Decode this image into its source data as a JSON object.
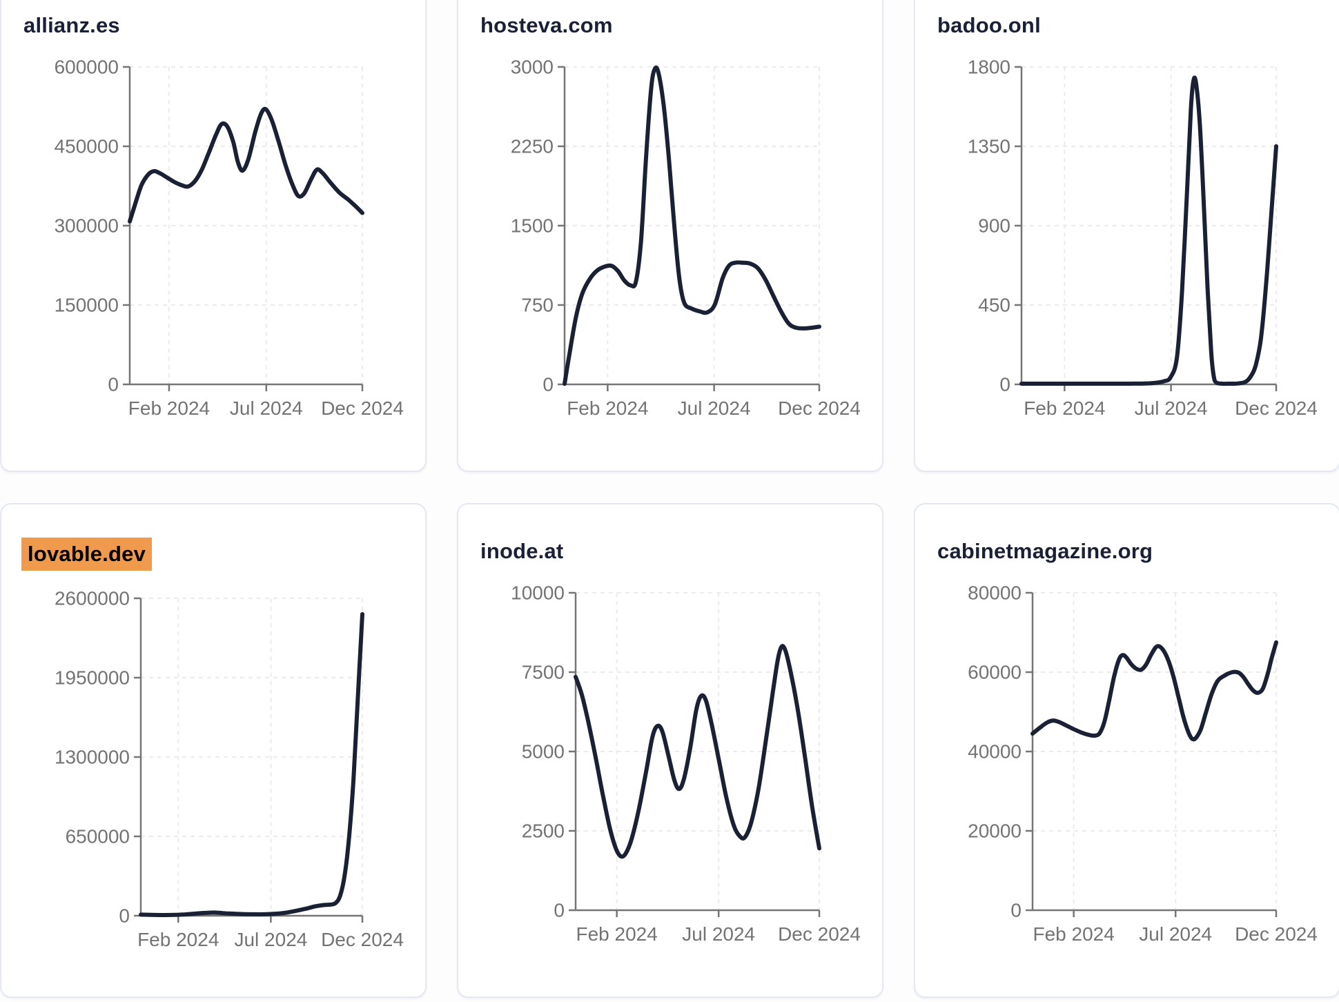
{
  "page": {
    "background": "#fdfdfe",
    "card": {
      "background": "#ffffff",
      "border_color": "#e4e8f1",
      "title_color": "#1a2136",
      "highlight_color": "#f09a4d",
      "highlight_text_color": "#000000",
      "line_color": "#1b2134",
      "axis_color": "#757575",
      "tick_label_color": "#737373",
      "grid_color": "#ebebeb"
    }
  },
  "chart_data": [
    {
      "type": "line",
      "title": "allianz.es",
      "title_highlighted": false,
      "ylim": [
        0,
        600000
      ],
      "y_ticks": [
        0,
        150000,
        300000,
        450000,
        600000
      ],
      "x_tick_labels": [
        "Feb 2024",
        "Jul 2024",
        "Dec 2024"
      ],
      "x_tick_pos": [
        0.169,
        0.587,
        1.0
      ],
      "grid": "dashed",
      "legend": "none",
      "points": [
        [
          0,
          308000
        ],
        [
          0.02,
          336000
        ],
        [
          0.05,
          376000
        ],
        [
          0.08,
          397000
        ],
        [
          0.105,
          403000
        ],
        [
          0.13,
          399000
        ],
        [
          0.16,
          391000
        ],
        [
          0.19,
          383000
        ],
        [
          0.22,
          377000
        ],
        [
          0.25,
          374000
        ],
        [
          0.28,
          384000
        ],
        [
          0.31,
          406000
        ],
        [
          0.34,
          438000
        ],
        [
          0.37,
          471000
        ],
        [
          0.395,
          492000
        ],
        [
          0.42,
          487000
        ],
        [
          0.445,
          458000
        ],
        [
          0.465,
          420000
        ],
        [
          0.485,
          404000
        ],
        [
          0.51,
          426000
        ],
        [
          0.54,
          478000
        ],
        [
          0.565,
          512000
        ],
        [
          0.585,
          520000
        ],
        [
          0.61,
          500000
        ],
        [
          0.64,
          459000
        ],
        [
          0.67,
          414000
        ],
        [
          0.7,
          377000
        ],
        [
          0.725,
          356000
        ],
        [
          0.75,
          361000
        ],
        [
          0.78,
          388000
        ],
        [
          0.805,
          406000
        ],
        [
          0.83,
          399000
        ],
        [
          0.86,
          383000
        ],
        [
          0.9,
          363000
        ],
        [
          0.94,
          349000
        ],
        [
          0.97,
          337000
        ],
        [
          1,
          324000
        ]
      ]
    },
    {
      "type": "line",
      "title": "hosteva.com",
      "title_highlighted": false,
      "ylim": [
        0,
        3000
      ],
      "y_ticks": [
        0,
        750,
        1500,
        2250,
        3000
      ],
      "x_tick_labels": [
        "Feb 2024",
        "Jul 2024",
        "Dec 2024"
      ],
      "x_tick_pos": [
        0.169,
        0.587,
        1.0
      ],
      "grid": "dashed",
      "legend": "none",
      "points": [
        [
          0,
          5
        ],
        [
          0.02,
          300
        ],
        [
          0.045,
          640
        ],
        [
          0.07,
          860
        ],
        [
          0.1,
          1000
        ],
        [
          0.13,
          1080
        ],
        [
          0.16,
          1115
        ],
        [
          0.185,
          1120
        ],
        [
          0.21,
          1070
        ],
        [
          0.235,
          980
        ],
        [
          0.26,
          935
        ],
        [
          0.28,
          970
        ],
        [
          0.3,
          1350
        ],
        [
          0.32,
          2150
        ],
        [
          0.34,
          2800
        ],
        [
          0.355,
          2985
        ],
        [
          0.37,
          2930
        ],
        [
          0.39,
          2620
        ],
        [
          0.41,
          2120
        ],
        [
          0.43,
          1520
        ],
        [
          0.45,
          1010
        ],
        [
          0.47,
          770
        ],
        [
          0.5,
          715
        ],
        [
          0.53,
          690
        ],
        [
          0.56,
          680
        ],
        [
          0.59,
          755
        ],
        [
          0.62,
          1000
        ],
        [
          0.645,
          1120
        ],
        [
          0.67,
          1150
        ],
        [
          0.7,
          1150
        ],
        [
          0.73,
          1140
        ],
        [
          0.76,
          1095
        ],
        [
          0.79,
          985
        ],
        [
          0.82,
          835
        ],
        [
          0.85,
          690
        ],
        [
          0.88,
          575
        ],
        [
          0.91,
          535
        ],
        [
          0.95,
          530
        ],
        [
          1,
          545
        ]
      ]
    },
    {
      "type": "line",
      "title": "badoo.onl",
      "title_highlighted": false,
      "ylim": [
        0,
        1800
      ],
      "y_ticks": [
        0,
        450,
        900,
        1350,
        1800
      ],
      "x_tick_labels": [
        "Feb 2024",
        "Jul 2024",
        "Dec 2024"
      ],
      "x_tick_pos": [
        0.169,
        0.587,
        1.0
      ],
      "grid": "dashed",
      "legend": "none",
      "points": [
        [
          0,
          4
        ],
        [
          0.06,
          4
        ],
        [
          0.12,
          4
        ],
        [
          0.18,
          4
        ],
        [
          0.24,
          4
        ],
        [
          0.3,
          4
        ],
        [
          0.36,
          4
        ],
        [
          0.42,
          4
        ],
        [
          0.48,
          5
        ],
        [
          0.52,
          8
        ],
        [
          0.56,
          18
        ],
        [
          0.585,
          40
        ],
        [
          0.61,
          150
        ],
        [
          0.63,
          520
        ],
        [
          0.65,
          1100
        ],
        [
          0.665,
          1560
        ],
        [
          0.675,
          1720
        ],
        [
          0.685,
          1710
        ],
        [
          0.7,
          1480
        ],
        [
          0.715,
          1050
        ],
        [
          0.73,
          560
        ],
        [
          0.745,
          180
        ],
        [
          0.755,
          45
        ],
        [
          0.765,
          10
        ],
        [
          0.79,
          4
        ],
        [
          0.82,
          4
        ],
        [
          0.85,
          5
        ],
        [
          0.88,
          15
        ],
        [
          0.9,
          45
        ],
        [
          0.92,
          110
        ],
        [
          0.94,
          260
        ],
        [
          0.96,
          560
        ],
        [
          0.98,
          950
        ],
        [
          1,
          1350
        ]
      ]
    },
    {
      "type": "line",
      "title": "lovable.dev",
      "title_highlighted": true,
      "ylim": [
        0,
        2600000
      ],
      "y_ticks": [
        0,
        650000,
        1300000,
        1950000,
        2600000
      ],
      "x_tick_labels": [
        "Feb 2024",
        "Jul 2024",
        "Dec 2024"
      ],
      "x_tick_pos": [
        0.169,
        0.587,
        1.0
      ],
      "grid": "dashed",
      "legend": "none",
      "points": [
        [
          0,
          9000
        ],
        [
          0.05,
          7000
        ],
        [
          0.1,
          5500
        ],
        [
          0.15,
          7000
        ],
        [
          0.2,
          11000
        ],
        [
          0.25,
          18000
        ],
        [
          0.3,
          24000
        ],
        [
          0.33,
          26000
        ],
        [
          0.36,
          23000
        ],
        [
          0.4,
          18000
        ],
        [
          0.45,
          14000
        ],
        [
          0.5,
          12000
        ],
        [
          0.55,
          12000
        ],
        [
          0.6,
          15000
        ],
        [
          0.65,
          24000
        ],
        [
          0.7,
          40000
        ],
        [
          0.75,
          60000
        ],
        [
          0.79,
          78000
        ],
        [
          0.83,
          88000
        ],
        [
          0.86,
          92000
        ],
        [
          0.88,
          105000
        ],
        [
          0.9,
          165000
        ],
        [
          0.92,
          330000
        ],
        [
          0.94,
          640000
        ],
        [
          0.96,
          1120000
        ],
        [
          0.98,
          1800000
        ],
        [
          1,
          2470000
        ]
      ]
    },
    {
      "type": "line",
      "title": "inode.at",
      "title_highlighted": false,
      "ylim": [
        0,
        10000
      ],
      "y_ticks": [
        0,
        2500,
        5000,
        7500,
        10000
      ],
      "x_tick_labels": [
        "Feb 2024",
        "Jul 2024",
        "Dec 2024"
      ],
      "x_tick_pos": [
        0.169,
        0.587,
        1.0
      ],
      "grid": "dashed",
      "legend": "none",
      "points": [
        [
          0,
          7350
        ],
        [
          0.025,
          6800
        ],
        [
          0.05,
          6000
        ],
        [
          0.08,
          4900
        ],
        [
          0.11,
          3700
        ],
        [
          0.14,
          2600
        ],
        [
          0.165,
          1950
        ],
        [
          0.185,
          1700
        ],
        [
          0.205,
          1780
        ],
        [
          0.23,
          2250
        ],
        [
          0.26,
          3200
        ],
        [
          0.29,
          4400
        ],
        [
          0.315,
          5450
        ],
        [
          0.335,
          5800
        ],
        [
          0.355,
          5650
        ],
        [
          0.38,
          4900
        ],
        [
          0.405,
          4100
        ],
        [
          0.425,
          3820
        ],
        [
          0.445,
          4150
        ],
        [
          0.47,
          5100
        ],
        [
          0.495,
          6300
        ],
        [
          0.515,
          6750
        ],
        [
          0.535,
          6600
        ],
        [
          0.56,
          5800
        ],
        [
          0.59,
          4650
        ],
        [
          0.62,
          3500
        ],
        [
          0.65,
          2650
        ],
        [
          0.675,
          2320
        ],
        [
          0.695,
          2300
        ],
        [
          0.72,
          2750
        ],
        [
          0.75,
          3800
        ],
        [
          0.78,
          5300
        ],
        [
          0.81,
          6900
        ],
        [
          0.83,
          7900
        ],
        [
          0.845,
          8300
        ],
        [
          0.86,
          8200
        ],
        [
          0.88,
          7600
        ],
        [
          0.91,
          6400
        ],
        [
          0.94,
          4900
        ],
        [
          0.97,
          3300
        ],
        [
          1,
          1950
        ]
      ]
    },
    {
      "type": "line",
      "title": "cabinetmagazine.org",
      "title_highlighted": false,
      "ylim": [
        0,
        80000
      ],
      "y_ticks": [
        0,
        20000,
        40000,
        60000,
        80000
      ],
      "x_tick_labels": [
        "Feb 2024",
        "Jul 2024",
        "Dec 2024"
      ],
      "x_tick_pos": [
        0.169,
        0.587,
        1.0
      ],
      "grid": "dashed",
      "legend": "none",
      "points": [
        [
          0,
          44500
        ],
        [
          0.03,
          46000
        ],
        [
          0.06,
          47300
        ],
        [
          0.085,
          47800
        ],
        [
          0.11,
          47400
        ],
        [
          0.14,
          46500
        ],
        [
          0.17,
          45600
        ],
        [
          0.2,
          44800
        ],
        [
          0.23,
          44200
        ],
        [
          0.255,
          44000
        ],
        [
          0.275,
          44600
        ],
        [
          0.295,
          47500
        ],
        [
          0.315,
          53000
        ],
        [
          0.335,
          59000
        ],
        [
          0.355,
          63200
        ],
        [
          0.37,
          64300
        ],
        [
          0.385,
          63700
        ],
        [
          0.405,
          62000
        ],
        [
          0.425,
          60900
        ],
        [
          0.445,
          60600
        ],
        [
          0.465,
          61800
        ],
        [
          0.485,
          64200
        ],
        [
          0.505,
          66200
        ],
        [
          0.52,
          66500
        ],
        [
          0.54,
          65200
        ],
        [
          0.56,
          62500
        ],
        [
          0.58,
          58500
        ],
        [
          0.6,
          53500
        ],
        [
          0.62,
          48500
        ],
        [
          0.64,
          44800
        ],
        [
          0.655,
          43200
        ],
        [
          0.67,
          43400
        ],
        [
          0.69,
          45500
        ],
        [
          0.71,
          49500
        ],
        [
          0.735,
          54500
        ],
        [
          0.76,
          57800
        ],
        [
          0.79,
          59200
        ],
        [
          0.82,
          60000
        ],
        [
          0.845,
          59900
        ],
        [
          0.865,
          58800
        ],
        [
          0.885,
          57000
        ],
        [
          0.905,
          55400
        ],
        [
          0.925,
          54800
        ],
        [
          0.945,
          55800
        ],
        [
          0.965,
          59500
        ],
        [
          0.98,
          63200
        ],
        [
          1,
          67500
        ]
      ]
    }
  ]
}
